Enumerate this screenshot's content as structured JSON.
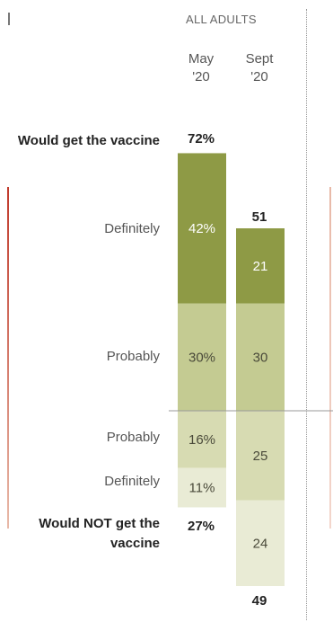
{
  "header": {
    "group": "ALL ADULTS"
  },
  "columns": [
    {
      "line1": "May",
      "line2": "'20"
    },
    {
      "line1": "Sept",
      "line2": "'20"
    }
  ],
  "labels": {
    "would_get": "Would get the vaccine",
    "would_not_get": "Would NOT get the vaccine",
    "definitely": "Definitely",
    "probably": "Probably"
  },
  "colors": {
    "definitely_get": "#8e9a45",
    "probably_get": "#c4cb92",
    "probably_not": "#d7dbb2",
    "definitely_not": "#e9ebd5",
    "divider": "#999999",
    "accent": "#c0392b"
  },
  "chart_data": {
    "type": "bar",
    "stacked": true,
    "categories": [
      "May '20",
      "Sept '20"
    ],
    "series": [
      {
        "name": "Definitely",
        "group": "Would get the vaccine",
        "values": [
          42,
          21
        ],
        "labels": [
          "42%",
          "21"
        ]
      },
      {
        "name": "Probably",
        "group": "Would get the vaccine",
        "values": [
          30,
          30
        ],
        "labels": [
          "30%",
          "30"
        ]
      },
      {
        "name": "Probably",
        "group": "Would NOT get the vaccine",
        "values": [
          16,
          25
        ],
        "labels": [
          "16%",
          "25"
        ]
      },
      {
        "name": "Definitely",
        "group": "Would NOT get the vaccine",
        "values": [
          11,
          24
        ],
        "labels": [
          "11%",
          "24"
        ]
      }
    ],
    "totals": {
      "would_get": {
        "values": [
          72,
          51
        ],
        "labels": [
          "72%",
          "51"
        ]
      },
      "would_not_get": {
        "values": [
          27,
          49
        ],
        "labels": [
          "27%",
          "49"
        ]
      }
    }
  }
}
